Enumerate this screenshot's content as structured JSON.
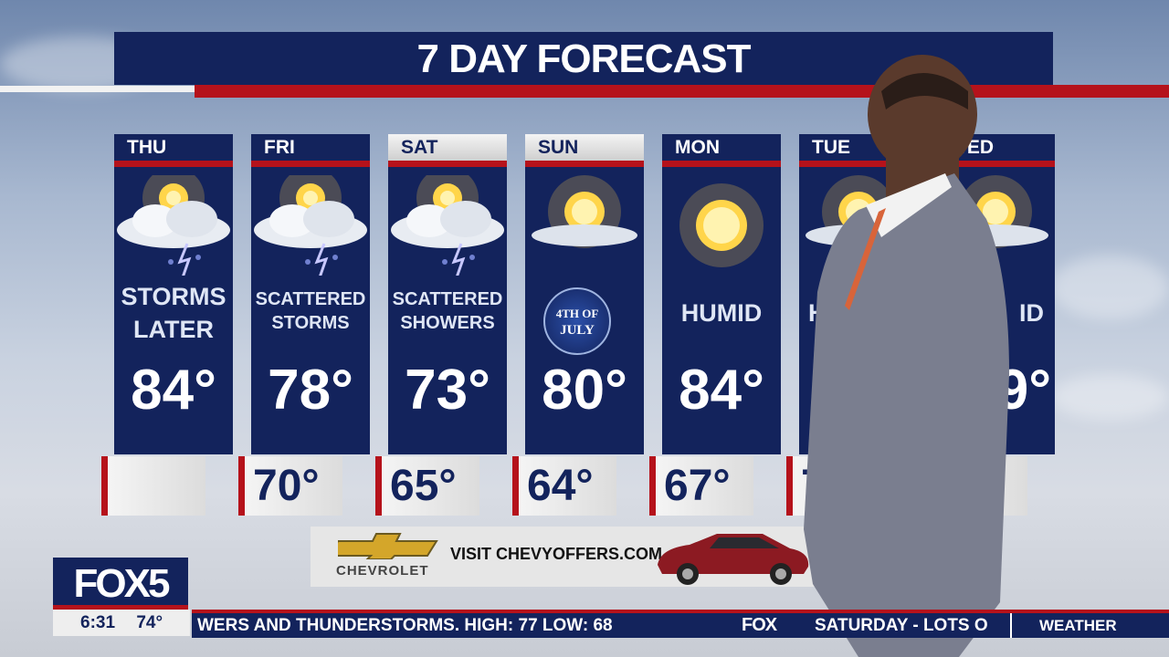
{
  "title": "7 DAY FORECAST",
  "days": [
    {
      "day": "THU",
      "condition": [
        "STORMS",
        "LATER"
      ],
      "high": "84°",
      "low": "",
      "icon": "storm-icon",
      "header_style": "dark"
    },
    {
      "day": "FRI",
      "condition": [
        "SCATTERED",
        "STORMS"
      ],
      "high": "78°",
      "low": "70°",
      "icon": "storm-icon",
      "header_style": "dark"
    },
    {
      "day": "SAT",
      "condition": [
        "SCATTERED",
        "SHOWERS"
      ],
      "high": "73°",
      "low": "65°",
      "icon": "storm-icon",
      "header_style": "light"
    },
    {
      "day": "SUN",
      "badge": [
        "4TH OF",
        "JULY"
      ],
      "high": "80°",
      "low": "64°",
      "icon": "partly-sunny-icon",
      "header_style": "light"
    },
    {
      "day": "MON",
      "condition": [
        "HUMID"
      ],
      "high": "84°",
      "low": "67°",
      "icon": "sunny-icon",
      "header_style": "dark"
    },
    {
      "day": "TUE",
      "condition": [
        "H"
      ],
      "high": "",
      "low": "7",
      "icon": "partly-sunny-icon",
      "header_style": "dark"
    },
    {
      "day": "WED",
      "condition": [
        "ID"
      ],
      "high": "9°",
      "low": "°",
      "icon": "partly-sunny-icon",
      "header_style": "dark"
    }
  ],
  "ad": {
    "brand": "CHEVROLET",
    "text": "VISIT CHEVYOFFERS.COM"
  },
  "station": {
    "logo": "FOX5",
    "time": "6:31",
    "temp": "74°"
  },
  "ticker": {
    "text": "WERS AND THUNDERSTORMS. HIGH:  77 LOW:  68",
    "brand": "FOX",
    "text2": "SATURDAY - LOTS O",
    "section": "WEATHER"
  },
  "colors": {
    "navy": "#13235c",
    "red": "#b5121b"
  }
}
